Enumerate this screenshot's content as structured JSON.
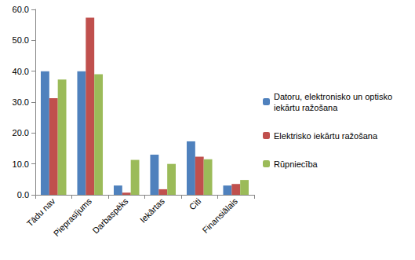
{
  "chart_data": {
    "type": "bar",
    "categories": [
      "Tādu nav",
      "Pieprasījums",
      "Darbaspēks",
      "Iekārtas",
      "Citi",
      "Finansiālais"
    ],
    "series": [
      {
        "name": "Datoru, elektronisko un optisko iekārtu ražošana",
        "color": "#4f81bd",
        "values": [
          40.0,
          40.0,
          3.0,
          13.0,
          17.3,
          3.0
        ]
      },
      {
        "name": "Elektrisko iekārtu ražošana",
        "color": "#c0504d",
        "values": [
          31.3,
          57.3,
          0.7,
          1.8,
          12.3,
          3.5
        ]
      },
      {
        "name": "Rūpniecība",
        "color": "#9bbb59",
        "values": [
          37.3,
          39.0,
          11.3,
          10.0,
          11.5,
          4.8
        ]
      }
    ],
    "ylim": [
      0,
      60
    ],
    "yticks": [
      {
        "value": 0,
        "label": "0.0"
      },
      {
        "value": 10,
        "label": "10.0"
      },
      {
        "value": 20,
        "label": "20.0"
      },
      {
        "value": 30,
        "label": "30.0"
      },
      {
        "value": 40,
        "label": "40.0"
      },
      {
        "value": 50,
        "label": "50.0"
      },
      {
        "value": 60,
        "label": "60.0"
      }
    ],
    "grid": false,
    "legend": "right"
  }
}
